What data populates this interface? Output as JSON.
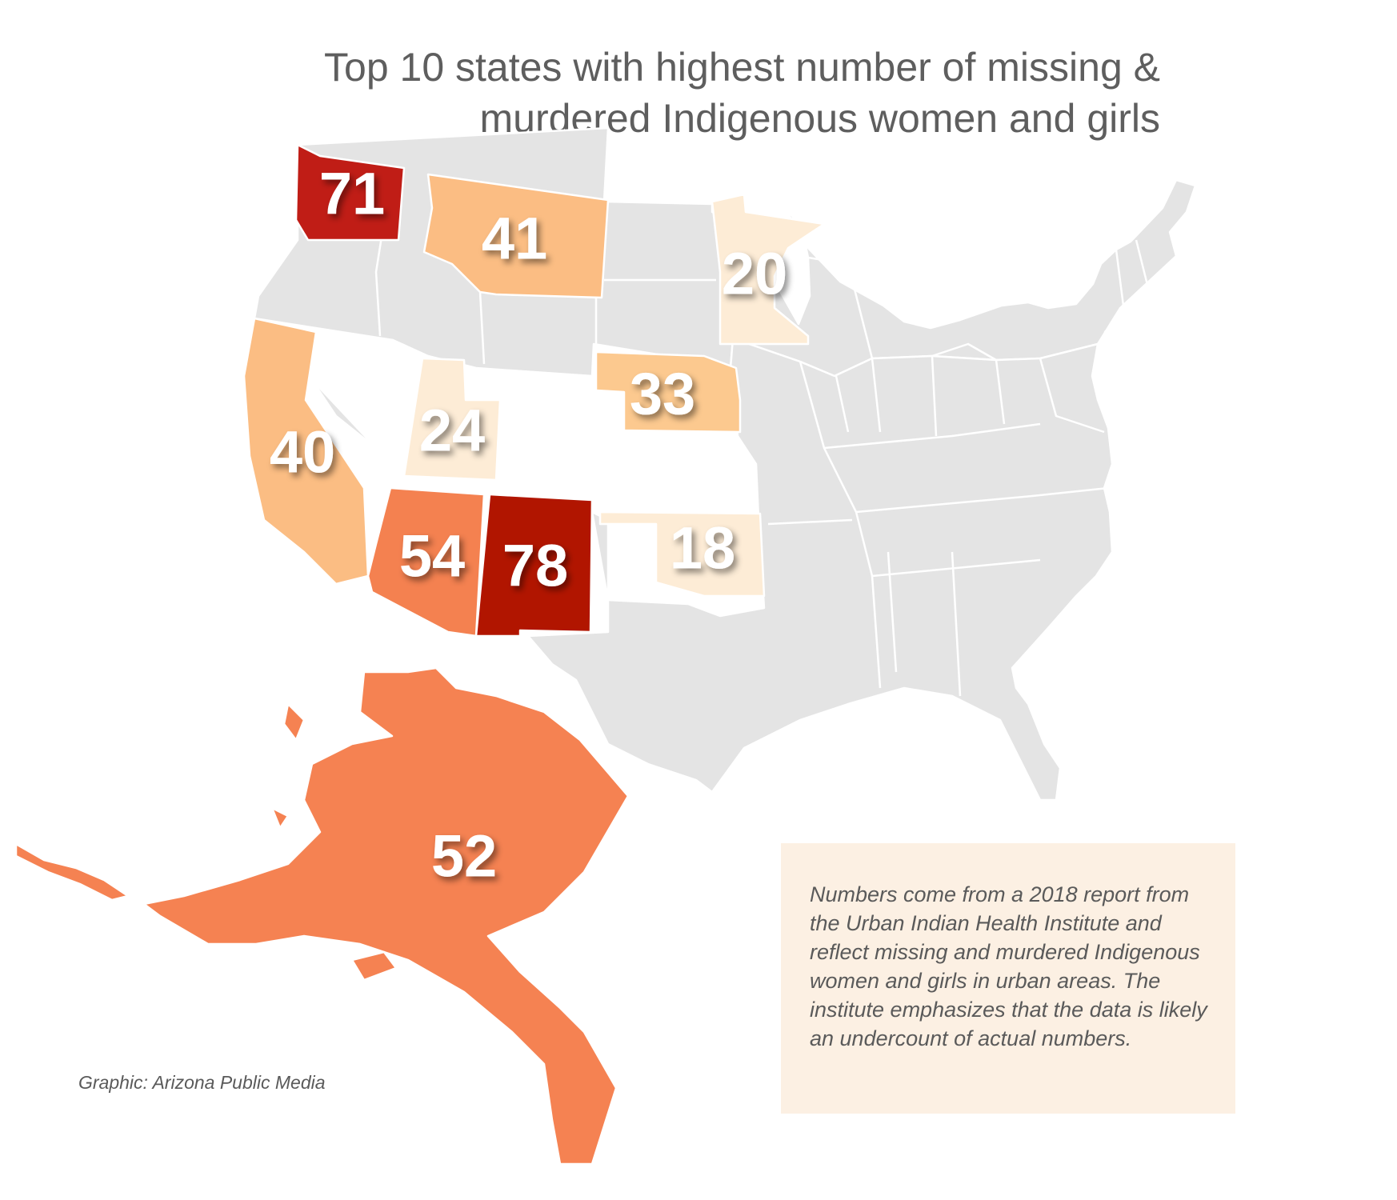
{
  "title": {
    "line1": "Top 10 states with highest number of missing &",
    "line2": "murdered Indigenous women and girls"
  },
  "map_data": {
    "type": "choropleth",
    "region": "United States",
    "base_color": "#e4e4e4",
    "border_color": "#ffffff",
    "states": [
      {
        "state": "New Mexico",
        "value": 78,
        "label": "78",
        "color": "#b11500"
      },
      {
        "state": "Washington",
        "value": 71,
        "label": "71",
        "color": "#c01d16"
      },
      {
        "state": "Arizona",
        "value": 54,
        "label": "54",
        "color": "#f48150"
      },
      {
        "state": "Alaska",
        "value": 52,
        "label": "52",
        "color": "#f58252"
      },
      {
        "state": "Montana",
        "value": 41,
        "label": "41",
        "color": "#fbbd83"
      },
      {
        "state": "California",
        "value": 40,
        "label": "40",
        "color": "#fbbd83"
      },
      {
        "state": "Nebraska",
        "value": 33,
        "label": "33",
        "color": "#fcc98f"
      },
      {
        "state": "Utah",
        "value": 24,
        "label": "24",
        "color": "#fdecd6"
      },
      {
        "state": "Minnesota",
        "value": 20,
        "label": "20",
        "color": "#fdecd6"
      },
      {
        "state": "Oklahoma",
        "value": 18,
        "label": "18",
        "color": "#fdecd6"
      }
    ]
  },
  "note": "Numbers come from a 2018 report from the Urban Indian Health Institute and reflect missing and murdered Indigenous women and girls in urban areas. The institute emphasizes that the data is likely an undercount of actual numbers.",
  "credit": "Graphic: Arizona Public Media"
}
